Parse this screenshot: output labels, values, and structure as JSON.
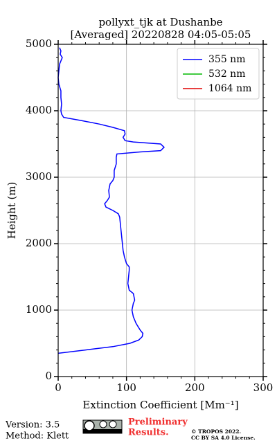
{
  "chart_data": {
    "type": "line",
    "title": "pollyxt_tjk at Dushanbe",
    "subtitle": "[Averaged] 20220828 04:05-05:05",
    "xlabel": "Extinction Coefficient [Mm⁻¹]",
    "ylabel": "Height (m)",
    "y": [
      350,
      400,
      450,
      500,
      550,
      600,
      650,
      700,
      800,
      900,
      1000,
      1100,
      1150,
      1250,
      1300,
      1400,
      1500,
      1600,
      1650,
      1700,
      1800,
      1900,
      2000,
      2100,
      2200,
      2300,
      2400,
      2450,
      2500,
      2550,
      2600,
      2650,
      2700,
      2800,
      2900,
      2950,
      3000,
      3100,
      3200,
      3300,
      3350,
      3380,
      3400,
      3450,
      3500,
      3530,
      3550,
      3600,
      3650,
      3700,
      3750,
      3800,
      3850,
      3900,
      3950,
      4000,
      4100,
      4200,
      4300,
      4400,
      4500,
      4600,
      4700,
      4800,
      4850,
      4900,
      4950
    ],
    "series": [
      {
        "name": "355 nm",
        "color": "#0000ff",
        "values": [
          0,
          40,
          80,
          105,
          118,
          123,
          124,
          120,
          114,
          110,
          108,
          110,
          112,
          110,
          104,
          102,
          103,
          104,
          104,
          100,
          97,
          95,
          94,
          93,
          92,
          91,
          90,
          88,
          80,
          70,
          68,
          72,
          75,
          74,
          76,
          80,
          82,
          82,
          85,
          85,
          86,
          120,
          150,
          155,
          150,
          110,
          98,
          95,
          98,
          97,
          80,
          60,
          35,
          8,
          5,
          4,
          5,
          4,
          4,
          1,
          0,
          1,
          2,
          6,
          3,
          4,
          2
        ]
      },
      {
        "name": "532 nm",
        "color": "#00b800",
        "values": [
          null,
          null,
          null,
          null,
          null,
          null,
          null,
          null,
          null,
          null,
          null,
          null,
          null,
          null,
          null,
          null,
          null,
          null,
          null,
          null,
          null,
          null,
          null,
          null,
          null,
          null,
          null,
          null,
          null,
          null,
          null,
          null,
          null,
          null,
          null,
          null,
          null,
          null,
          null,
          null,
          null,
          null,
          null,
          null,
          null,
          null,
          null,
          null,
          null,
          null,
          null,
          null,
          null,
          null,
          null,
          null,
          null,
          null,
          null,
          null,
          null,
          null,
          null,
          null,
          null,
          null,
          null
        ]
      },
      {
        "name": "1064 nm",
        "color": "#e00000",
        "values": [
          null,
          null,
          null,
          null,
          null,
          null,
          null,
          null,
          null,
          null,
          null,
          null,
          null,
          null,
          null,
          null,
          null,
          null,
          null,
          null,
          null,
          null,
          null,
          null,
          null,
          null,
          null,
          null,
          null,
          null,
          null,
          null,
          null,
          null,
          null,
          null,
          null,
          null,
          null,
          null,
          null,
          null,
          null,
          null,
          null,
          null,
          null,
          null,
          null,
          null,
          null,
          null,
          null,
          null,
          null,
          null,
          null,
          null,
          null,
          null,
          null,
          null,
          null,
          null,
          null,
          null,
          null
        ]
      }
    ],
    "xlim": [
      0,
      300
    ],
    "xticks": [
      0,
      100,
      200,
      300
    ],
    "ylim": [
      0,
      5000
    ],
    "yticks": [
      0,
      1000,
      2000,
      3000,
      4000,
      5000
    ],
    "grid": true,
    "legend": "upper right"
  },
  "footer": {
    "version": "Version: 3.5",
    "method": "Method: Klett",
    "preliminary_1": "Preliminary",
    "preliminary_2": "Results.",
    "copyright_1": "© TROPOS 2022.",
    "copyright_2": "CC BY SA 4.0 License."
  }
}
